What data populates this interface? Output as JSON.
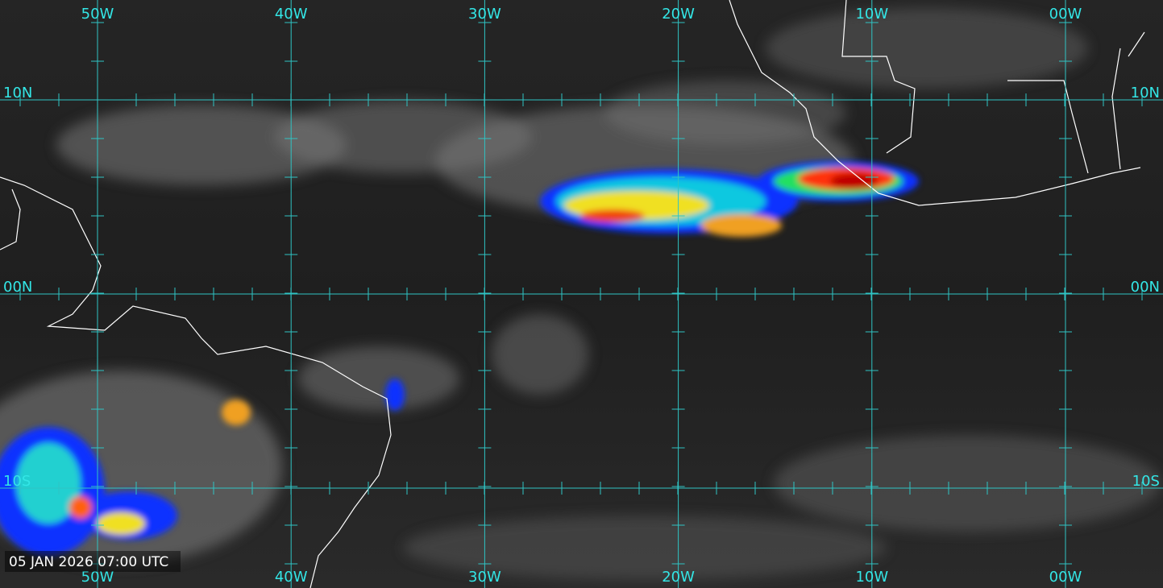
{
  "longitude_labels": [
    "50W",
    "40W",
    "30W",
    "20W",
    "10W",
    "00W"
  ],
  "latitude_labels": [
    "10N",
    "00N",
    "10S"
  ],
  "timestamp": "05 JAN 2026 07:00 UTC"
}
